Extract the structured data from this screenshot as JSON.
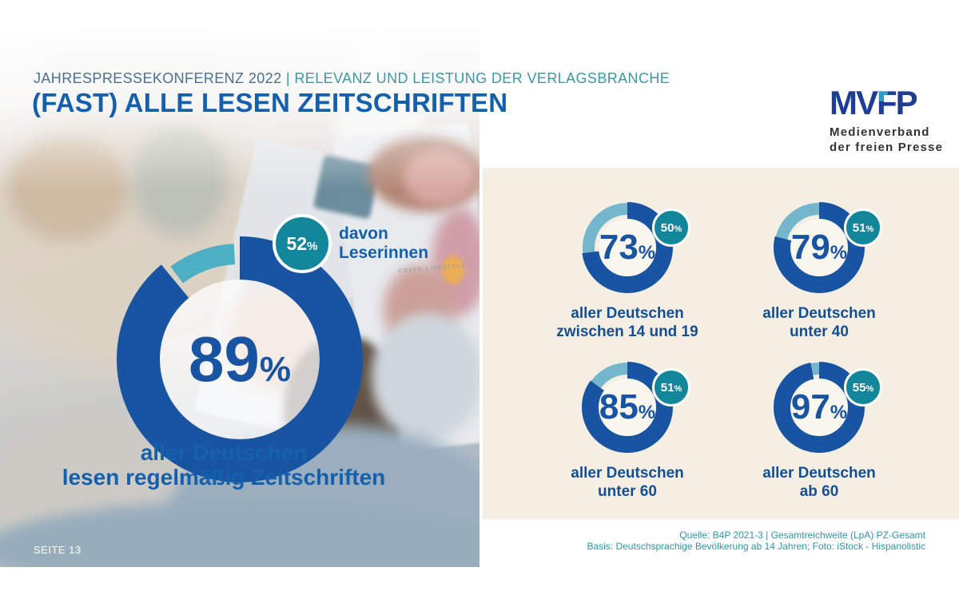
{
  "slide": {
    "kicker_main": "JAHRESPRESSEKONFERENZ 2022",
    "kicker_divider": "|",
    "kicker_sub": "RELEVANZ UND LEISTUNG DER VERLAGSBRANCHE",
    "title": "(FAST) ALLE LESEN ZEITSCHRIFTEN",
    "page_label": "SEITE 13"
  },
  "logo": {
    "wordmark": "MVFP",
    "letters": [
      "M",
      "V",
      "F",
      "P"
    ],
    "line1": "Medienverband",
    "line2": "der freien Presse"
  },
  "photo": {
    "magazine_caption": "COFFE LIFESTYLE"
  },
  "chart_data": {
    "type": "pie",
    "subtype": "donut",
    "unit": "%",
    "title": "(FAST) ALLE LESEN ZEITSCHRIFTEN",
    "main": {
      "value": 89,
      "value_label": "89",
      "badge_value": 52,
      "badge_label": "52",
      "badge_caption_line1": "davon",
      "badge_caption_line2": "Leserinnen",
      "caption_line1": "aller Deutschen",
      "caption_line2": "lesen regelmäßig Zeitschriften"
    },
    "groups": [
      {
        "value": 73,
        "value_label": "73",
        "badge_value": 50,
        "badge_label": "50",
        "label_line1": "aller Deutschen",
        "label_line2": "zwischen 14 und 19"
      },
      {
        "value": 79,
        "value_label": "79",
        "badge_value": 51,
        "badge_label": "51",
        "label_line1": "aller Deutschen",
        "label_line2": "unter 40"
      },
      {
        "value": 85,
        "value_label": "85",
        "badge_value": 51,
        "badge_label": "51",
        "label_line1": "aller Deutschen",
        "label_line2": "unter 60"
      },
      {
        "value": 97,
        "value_label": "97",
        "badge_value": 55,
        "badge_label": "55",
        "label_line1": "aller Deutschen",
        "label_line2": "ab 60"
      }
    ]
  },
  "footer": {
    "source_line1": "Quelle: B4P 2021-3 | Gesamtreichweite (LpA) PZ-Gesamt",
    "source_line2": "Basis: Deutschsprachige Bevölkerung ab 14 Jahren; Foto: iStock - Hispanolistic"
  },
  "colors": {
    "primary_blue": "#1854A2",
    "title_blue": "#1460AC",
    "light_arc_large": "#4DAFC4",
    "light_arc_small": "#74B7CD",
    "badge_teal": "#12879C",
    "panel_cream": "#F4EFE2",
    "kicker_blue": "#4A7092",
    "kicker_teal": "#3C98A6",
    "source_teal": "#2F97A4",
    "logo_navy": "#1E3E96",
    "logo_teal": "#2E9FC0"
  }
}
